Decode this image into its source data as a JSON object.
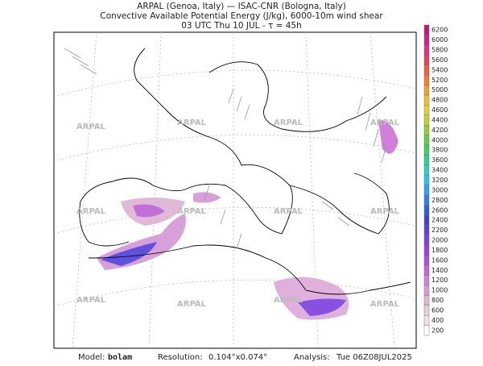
{
  "header": {
    "line1": "ARPAL (Genoa, Italy)  —  ISAC-CNR (Bologna, Italy)",
    "line2": "Convective Available Potential Energy (J/kg), 6000-10m wind shear",
    "line3": "03 UTC Thu 10 JUL  -  τ = 45h"
  },
  "watermark": "ARPAL",
  "colorbar": {
    "levels": [
      200,
      400,
      600,
      800,
      1000,
      1200,
      1400,
      1600,
      1800,
      2000,
      2200,
      2400,
      2600,
      2800,
      3000,
      3200,
      3400,
      3600,
      3800,
      4000,
      4200,
      4400,
      4600,
      4800,
      5000,
      5200,
      5400,
      5600,
      5800,
      6000,
      6200
    ],
    "colors": [
      "#ffffff",
      "#f2e4e4",
      "#e8d0d0",
      "#dcb8c8",
      "#d89ad2",
      "#d080d8",
      "#c864e0",
      "#b050e0",
      "#9a40e0",
      "#8040e0",
      "#6040e0",
      "#4040d8",
      "#3060e0",
      "#3080e8",
      "#30a0f0",
      "#30c0f0",
      "#30d0c0",
      "#30d090",
      "#40d060",
      "#60d040",
      "#90d030",
      "#c0d030",
      "#e0d030",
      "#f0c030",
      "#f0a030",
      "#f08030",
      "#f06040",
      "#e84060",
      "#e03080",
      "#d02090",
      "#c01878"
    ]
  },
  "footer": {
    "model_label": "Model:",
    "model": "bolam",
    "resolution_label": "Resolution:",
    "resolution": "0.104°x0.074°",
    "analysis_label": "Analysis:",
    "analysis": "Tue 06Z08JUL2025"
  }
}
